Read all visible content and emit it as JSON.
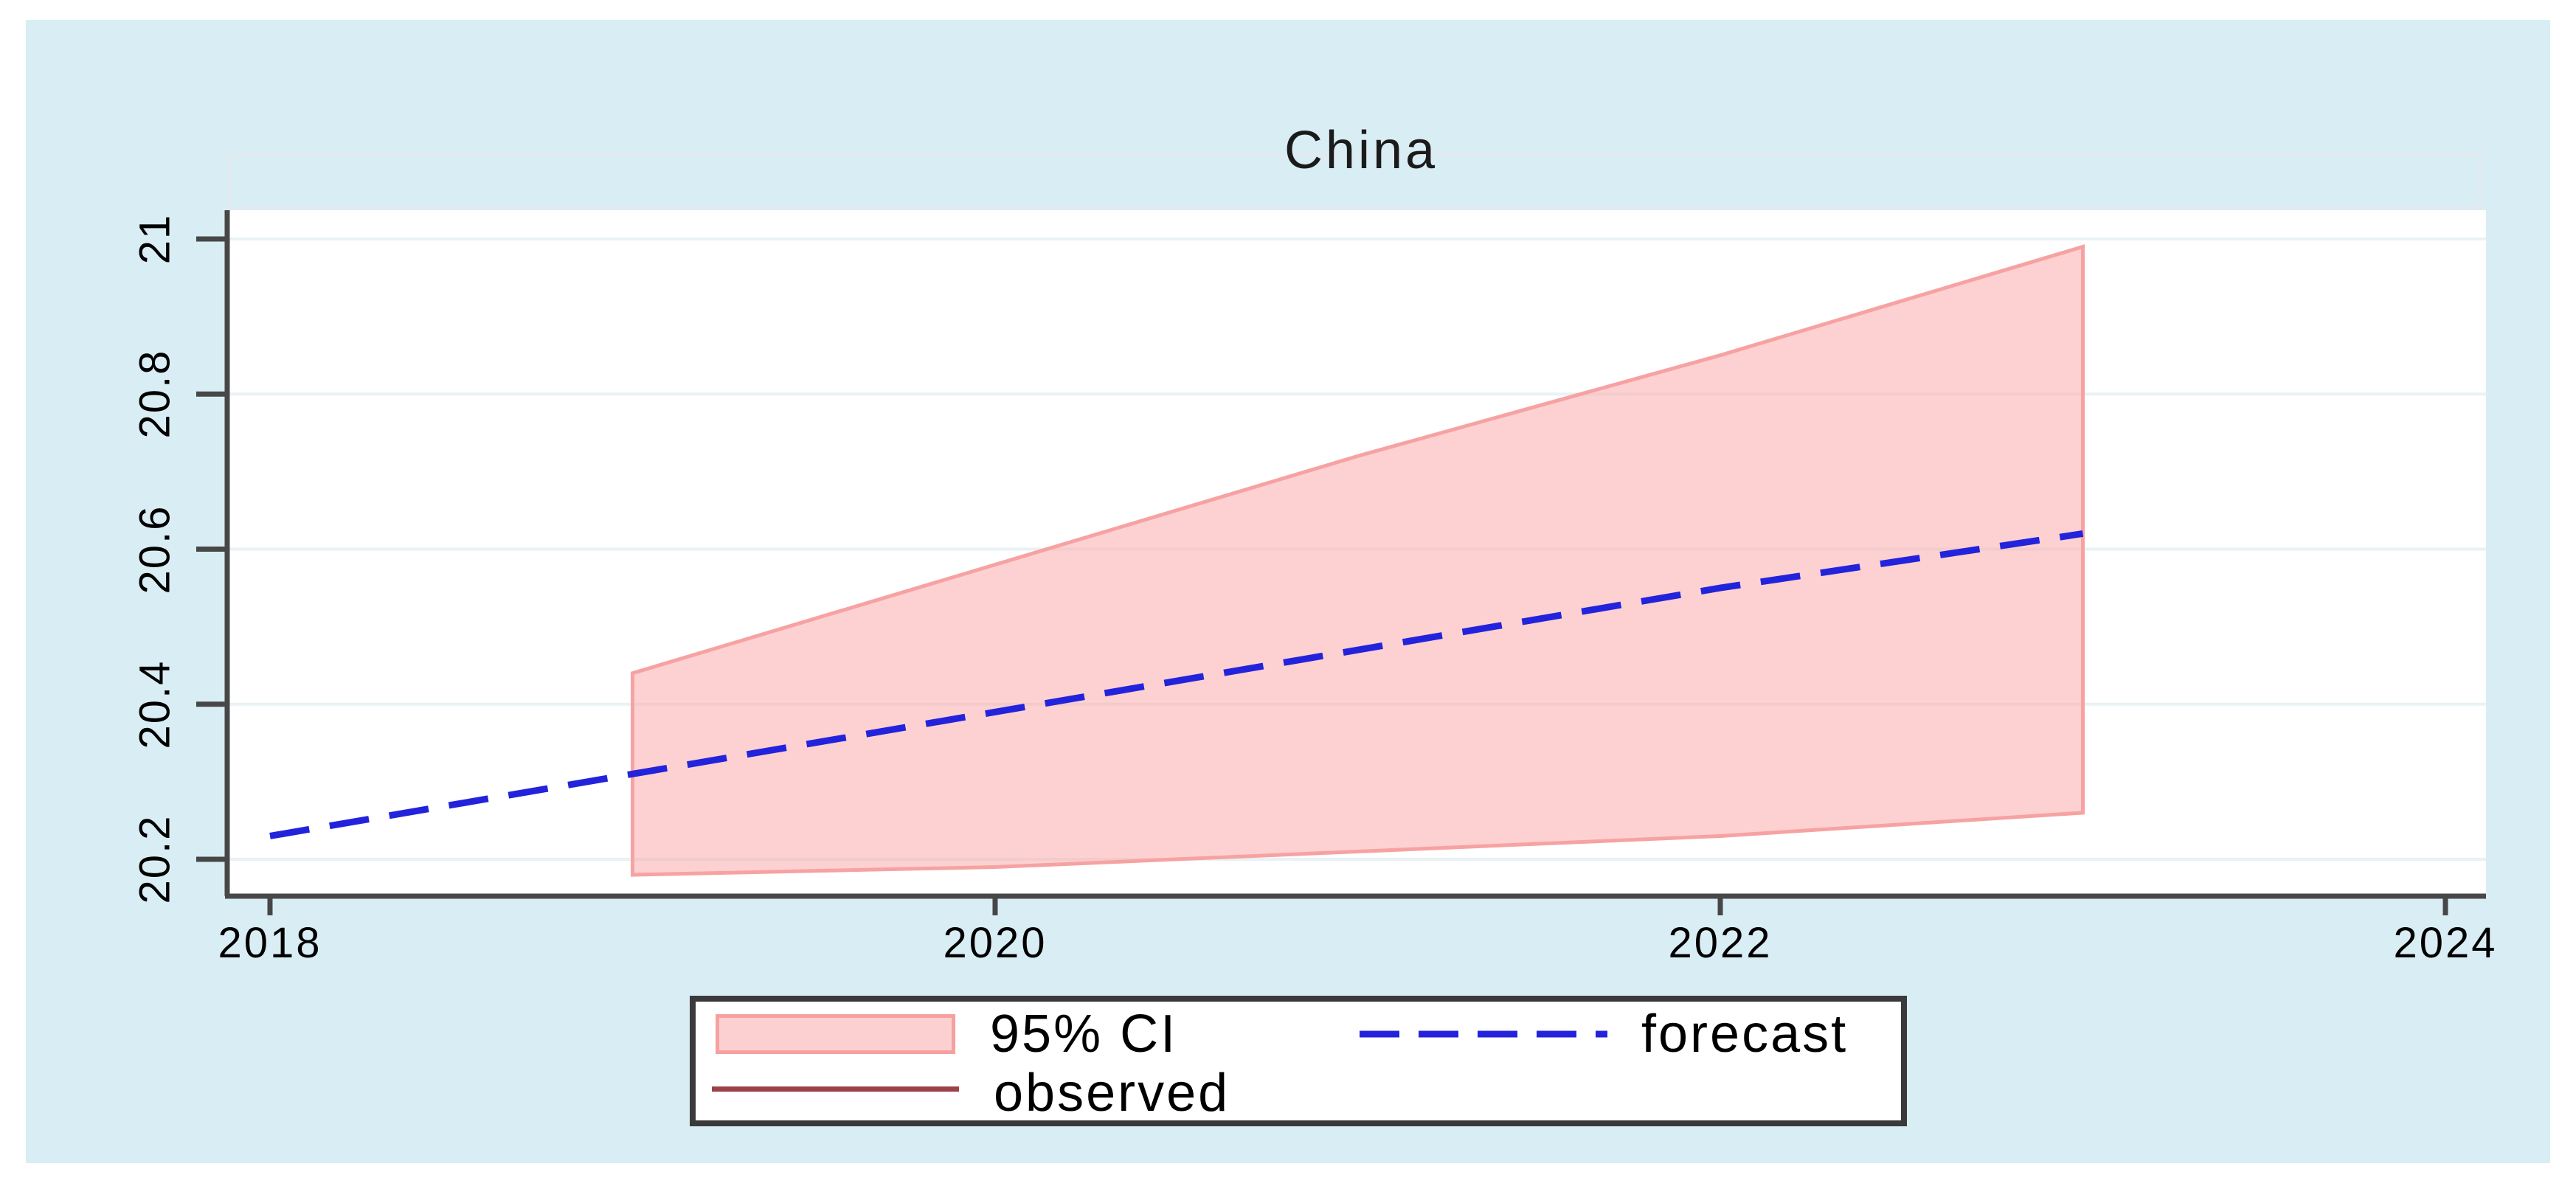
{
  "title": "China",
  "colors": {
    "canvas_bg": "#d9edf4",
    "plot_bg": "#ffffff",
    "grid": "#e9f2f5",
    "axis": "#474747",
    "band_fill": "#fba3a3",
    "band_stroke": "#f7a2a2",
    "forecast_line": "#2323dc",
    "observed_line": "#9c4148",
    "legend_border": "#3a3a3a",
    "text": "#000000"
  },
  "legend": {
    "items": [
      {
        "label": "95% CI",
        "swatch": "area"
      },
      {
        "label": "forecast",
        "swatch": "dashed-line"
      },
      {
        "label": "observed",
        "swatch": "solid-line"
      }
    ]
  },
  "chart_data": {
    "type": "line",
    "title": "China",
    "x": [
      2018,
      2019,
      2020,
      2021,
      2022,
      2023
    ],
    "series": [
      {
        "name": "forecast",
        "style": "dashed",
        "color": "#2323dc",
        "values": [
          20.23,
          20.31,
          20.39,
          20.47,
          20.55,
          20.62
        ]
      },
      {
        "name": "observed",
        "style": "solid",
        "color": "#9c4148",
        "values": []
      }
    ],
    "ci_band": {
      "label": "95% CI",
      "x": [
        2019,
        2020,
        2021,
        2022,
        2023
      ],
      "upper": [
        20.44,
        20.58,
        20.72,
        20.85,
        20.99
      ],
      "lower": [
        20.18,
        20.19,
        20.21,
        20.23,
        20.26
      ]
    },
    "x_ticks": {
      "values": [
        2018,
        2020,
        2022,
        2024
      ],
      "labels": [
        "2018",
        "2020",
        "2022",
        "2024"
      ]
    },
    "y_ticks": {
      "values": [
        21,
        20.8,
        20.6,
        20.4,
        20.2
      ],
      "labels": [
        "21",
        "20.8",
        "20.6",
        "20.4",
        "20.2"
      ]
    },
    "xlim": [
      2017.88,
      2024.11
    ],
    "ylim": [
      20.15,
      21.04
    ],
    "grid": "horizontal-only",
    "legend_position": "bottom-center"
  }
}
